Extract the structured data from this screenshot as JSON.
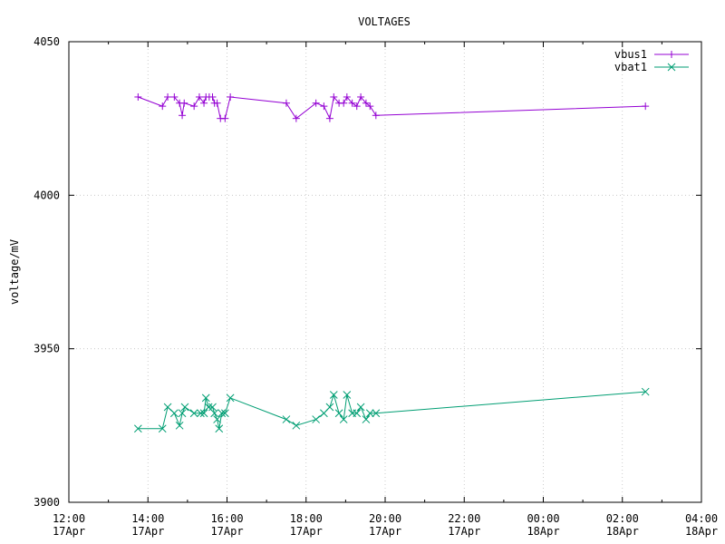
{
  "chart_data": {
    "type": "line",
    "title": "VOLTAGES",
    "xlabel": "",
    "ylabel": "voltage/mV",
    "ylim": [
      3900,
      4050
    ],
    "xlim": [
      "2024-04-17T12:00",
      "2024-04-18T04:00"
    ],
    "grid": true,
    "legend": "top-right",
    "yticks": [
      {
        "value": 3900,
        "label": "3900"
      },
      {
        "value": 3950,
        "label": "3950"
      },
      {
        "value": 4000,
        "label": "4000"
      },
      {
        "value": 4050,
        "label": "4050"
      }
    ],
    "xticks": [
      {
        "value": "2024-04-17T12:00",
        "time": "12:00",
        "date": "17Apr"
      },
      {
        "value": "2024-04-17T14:00",
        "time": "14:00",
        "date": "17Apr"
      },
      {
        "value": "2024-04-17T16:00",
        "time": "16:00",
        "date": "17Apr"
      },
      {
        "value": "2024-04-17T18:00",
        "time": "18:00",
        "date": "17Apr"
      },
      {
        "value": "2024-04-17T20:00",
        "time": "20:00",
        "date": "17Apr"
      },
      {
        "value": "2024-04-17T22:00",
        "time": "22:00",
        "date": "17Apr"
      },
      {
        "value": "2024-04-18T00:00",
        "time": "00:00",
        "date": "18Apr"
      },
      {
        "value": "2024-04-18T02:00",
        "time": "02:00",
        "date": "18Apr"
      },
      {
        "value": "2024-04-18T04:00",
        "time": "04:00",
        "date": "18Apr"
      }
    ],
    "series": [
      {
        "name": "vbus1",
        "color": "#9400d3",
        "marker": "plus",
        "points": [
          [
            "2024-04-17T13:45",
            4032
          ],
          [
            "2024-04-17T14:22",
            4029
          ],
          [
            "2024-04-17T14:30",
            4032
          ],
          [
            "2024-04-17T14:40",
            4032
          ],
          [
            "2024-04-17T14:48",
            4030
          ],
          [
            "2024-04-17T14:52",
            4026
          ],
          [
            "2024-04-17T14:55",
            4030
          ],
          [
            "2024-04-17T15:10",
            4029
          ],
          [
            "2024-04-17T15:18",
            4032
          ],
          [
            "2024-04-17T15:25",
            4030
          ],
          [
            "2024-04-17T15:28",
            4032
          ],
          [
            "2024-04-17T15:33",
            4032
          ],
          [
            "2024-04-17T15:38",
            4032
          ],
          [
            "2024-04-17T15:41",
            4030
          ],
          [
            "2024-04-17T15:45",
            4030
          ],
          [
            "2024-04-17T15:50",
            4025
          ],
          [
            "2024-04-17T15:57",
            4025
          ],
          [
            "2024-04-17T16:05",
            4032
          ],
          [
            "2024-04-17T17:30",
            4030
          ],
          [
            "2024-04-17T17:45",
            4025
          ],
          [
            "2024-04-17T18:15",
            4030
          ],
          [
            "2024-04-17T18:27",
            4029
          ],
          [
            "2024-04-17T18:36",
            4025
          ],
          [
            "2024-04-17T18:42",
            4032
          ],
          [
            "2024-04-17T18:50",
            4030
          ],
          [
            "2024-04-17T18:57",
            4030
          ],
          [
            "2024-04-17T19:02",
            4032
          ],
          [
            "2024-04-17T19:10",
            4030
          ],
          [
            "2024-04-17T19:17",
            4029
          ],
          [
            "2024-04-17T19:23",
            4032
          ],
          [
            "2024-04-17T19:31",
            4030
          ],
          [
            "2024-04-17T19:37",
            4029
          ],
          [
            "2024-04-17T19:46",
            4026
          ],
          [
            "2024-04-18T02:35",
            4029
          ]
        ]
      },
      {
        "name": "vbat1",
        "color": "#009e73",
        "marker": "cross",
        "points": [
          [
            "2024-04-17T13:45",
            3924
          ],
          [
            "2024-04-17T14:22",
            3924
          ],
          [
            "2024-04-17T14:30",
            3931
          ],
          [
            "2024-04-17T14:40",
            3929
          ],
          [
            "2024-04-17T14:48",
            3925
          ],
          [
            "2024-04-17T14:52",
            3929
          ],
          [
            "2024-04-17T14:56",
            3931
          ],
          [
            "2024-04-17T15:10",
            3929
          ],
          [
            "2024-04-17T15:20",
            3929
          ],
          [
            "2024-04-17T15:25",
            3929
          ],
          [
            "2024-04-17T15:28",
            3934
          ],
          [
            "2024-04-17T15:32",
            3931
          ],
          [
            "2024-04-17T15:38",
            3931
          ],
          [
            "2024-04-17T15:41",
            3929
          ],
          [
            "2024-04-17T15:45",
            3927
          ],
          [
            "2024-04-17T15:48",
            3924
          ],
          [
            "2024-04-17T15:52",
            3929
          ],
          [
            "2024-04-17T15:57",
            3929
          ],
          [
            "2024-04-17T16:05",
            3934
          ],
          [
            "2024-04-17T17:30",
            3927
          ],
          [
            "2024-04-17T17:45",
            3925
          ],
          [
            "2024-04-17T18:15",
            3927
          ],
          [
            "2024-04-17T18:27",
            3929
          ],
          [
            "2024-04-17T18:36",
            3931
          ],
          [
            "2024-04-17T18:42",
            3935
          ],
          [
            "2024-04-17T18:50",
            3929
          ],
          [
            "2024-04-17T18:57",
            3927
          ],
          [
            "2024-04-17T19:02",
            3935
          ],
          [
            "2024-04-17T19:10",
            3929
          ],
          [
            "2024-04-17T19:17",
            3929
          ],
          [
            "2024-04-17T19:23",
            3931
          ],
          [
            "2024-04-17T19:31",
            3927
          ],
          [
            "2024-04-17T19:37",
            3929
          ],
          [
            "2024-04-17T19:46",
            3929
          ],
          [
            "2024-04-18T02:35",
            3936
          ]
        ]
      }
    ]
  }
}
